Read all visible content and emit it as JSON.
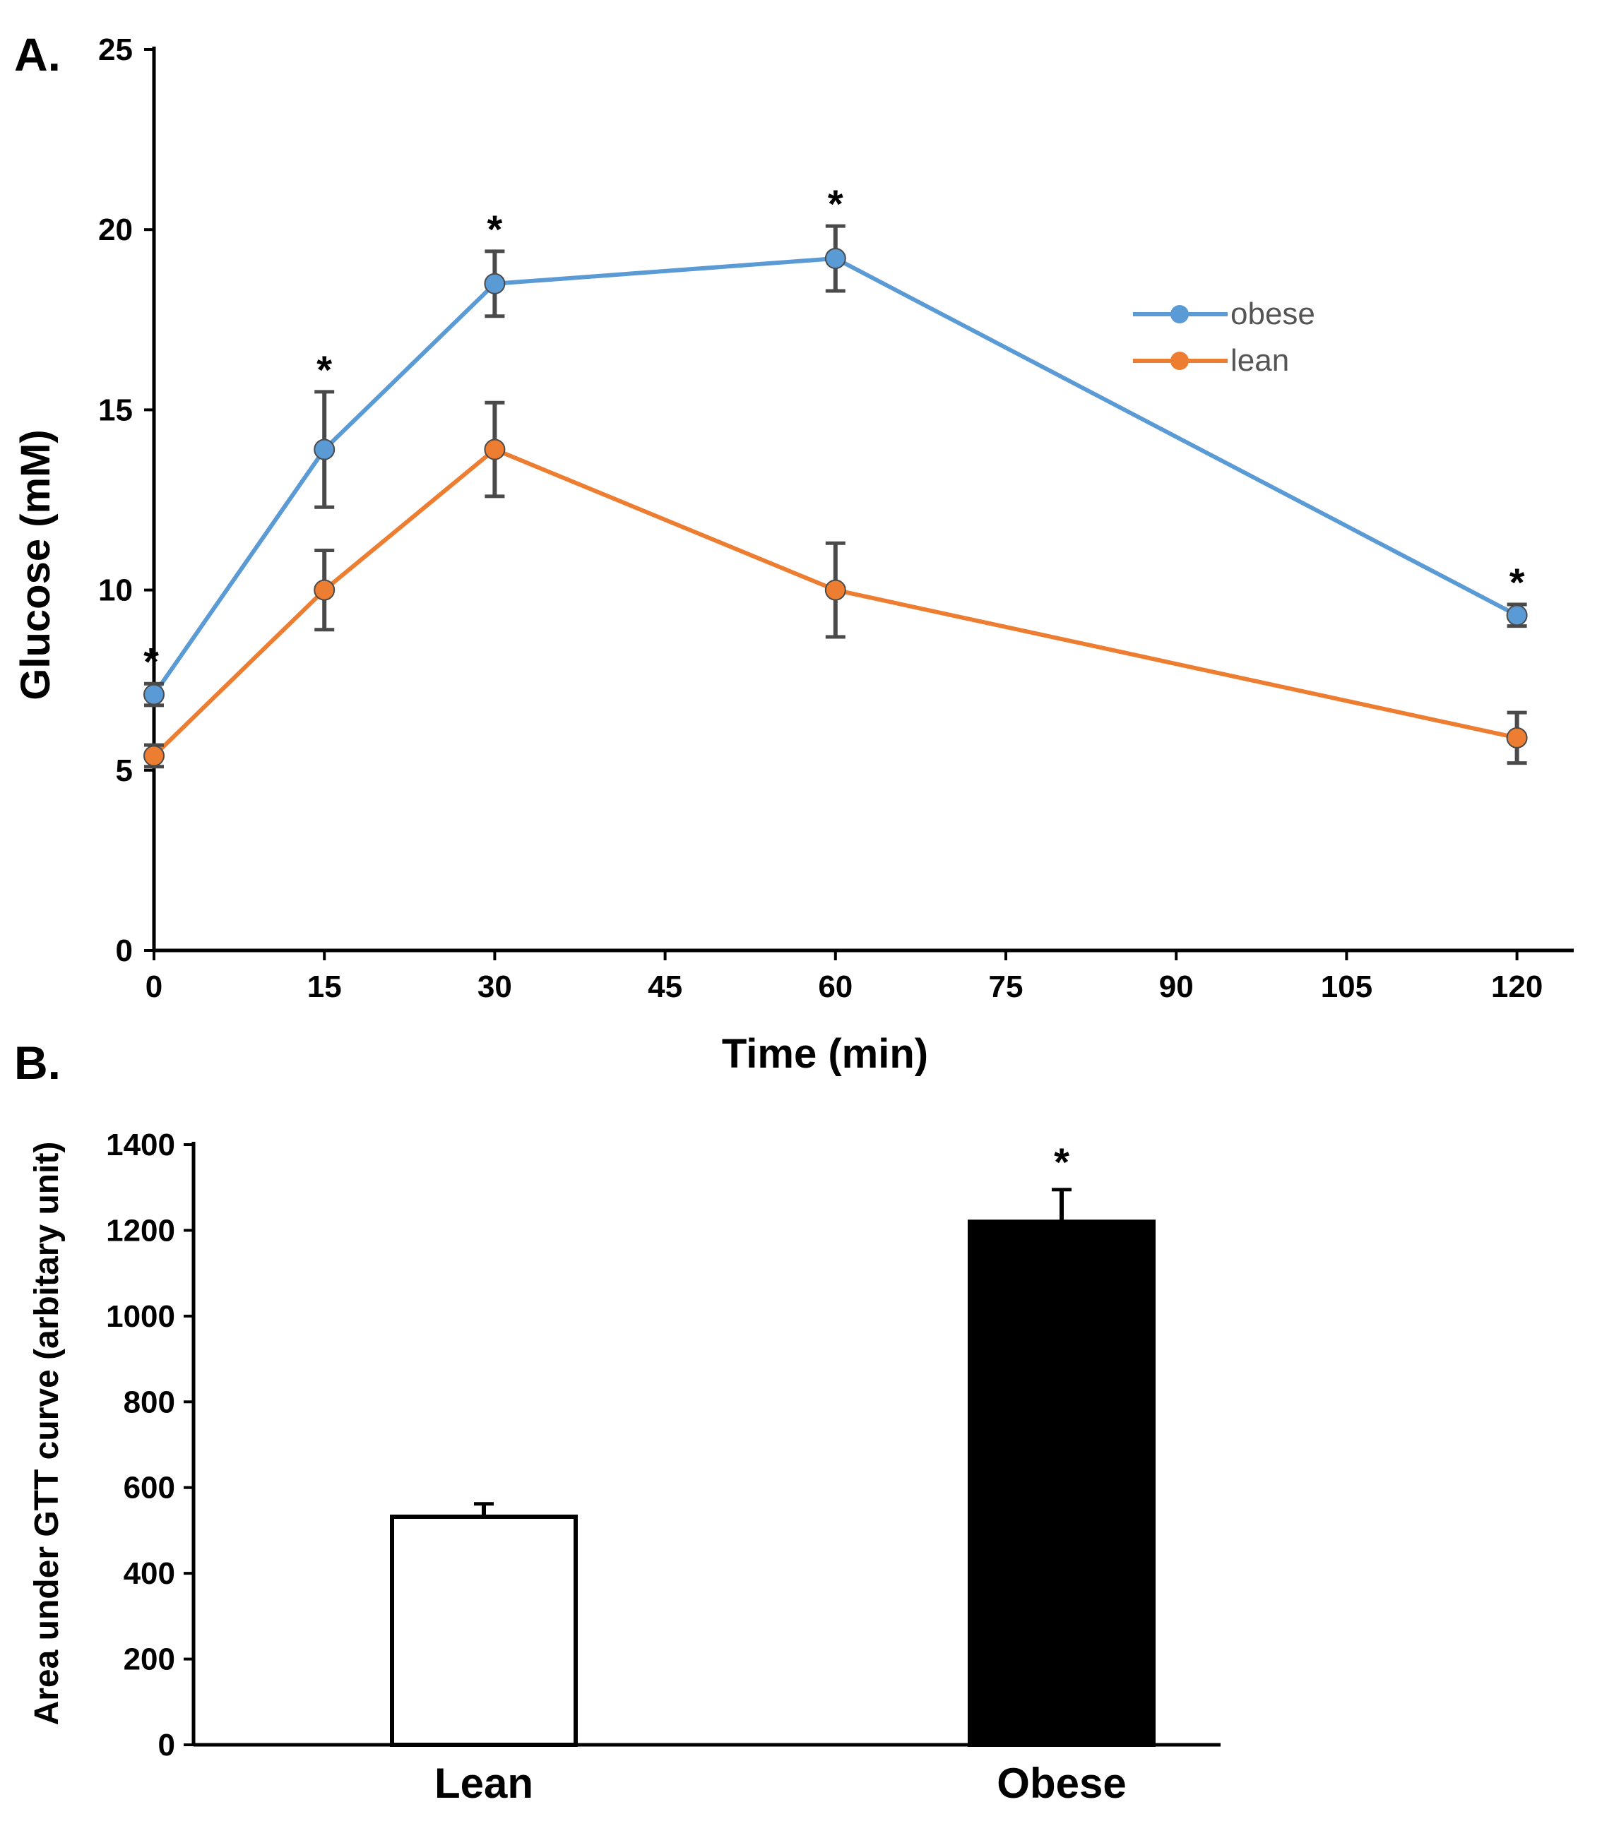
{
  "chart_data": [
    {
      "panel": "A.",
      "type": "line",
      "xlabel": "Time (min)",
      "ylabel": "Glucose (mM)",
      "xlim": [
        0,
        125
      ],
      "ylim": [
        0,
        25
      ],
      "x_ticks": [
        0,
        15,
        30,
        45,
        60,
        75,
        90,
        105,
        120
      ],
      "y_ticks": [
        0,
        5,
        10,
        15,
        20,
        25
      ],
      "x": [
        0,
        15,
        30,
        60,
        120
      ],
      "legend_position": "top-right",
      "grid": false,
      "series": [
        {
          "name": "obese",
          "color": "#5b9bd5",
          "values": [
            7.1,
            13.9,
            18.5,
            19.2,
            9.3
          ],
          "errors": [
            0.3,
            1.6,
            0.9,
            0.9,
            0.3
          ],
          "significance": [
            "*",
            "*",
            "*",
            "*",
            "*"
          ]
        },
        {
          "name": "lean",
          "color": "#ed7d31",
          "values": [
            5.4,
            10.0,
            13.9,
            10.0,
            5.9
          ],
          "errors": [
            0.3,
            1.1,
            1.3,
            1.3,
            0.7
          ],
          "significance": [
            "",
            "",
            "",
            "",
            ""
          ]
        }
      ]
    },
    {
      "panel": "B.",
      "type": "bar",
      "ylabel": "Area under GTT curve (arbitary unit)",
      "xlabel": "",
      "categories": [
        "Lean",
        "Obese"
      ],
      "values": [
        532,
        1220
      ],
      "errors": [
        30,
        75
      ],
      "significance": [
        "",
        "*"
      ],
      "bar_fills": [
        "#ffffff",
        "#000000"
      ],
      "ylim": [
        0,
        1400
      ],
      "y_ticks": [
        0,
        200,
        400,
        600,
        800,
        1000,
        1200,
        1400
      ],
      "grid": false
    }
  ]
}
